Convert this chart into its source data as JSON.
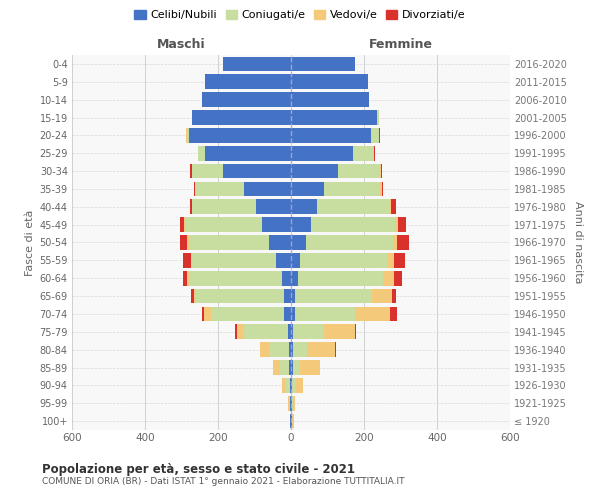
{
  "age_groups": [
    "100+",
    "95-99",
    "90-94",
    "85-89",
    "80-84",
    "75-79",
    "70-74",
    "65-69",
    "60-64",
    "55-59",
    "50-54",
    "45-49",
    "40-44",
    "35-39",
    "30-34",
    "25-29",
    "20-24",
    "15-19",
    "10-14",
    "5-9",
    "0-4"
  ],
  "birth_years": [
    "≤ 1920",
    "1921-1925",
    "1926-1930",
    "1931-1935",
    "1936-1940",
    "1941-1945",
    "1946-1950",
    "1951-1955",
    "1956-1960",
    "1961-1965",
    "1966-1970",
    "1971-1975",
    "1976-1980",
    "1981-1985",
    "1986-1990",
    "1991-1995",
    "1996-2000",
    "2001-2005",
    "2006-2010",
    "2011-2015",
    "2016-2020"
  ],
  "male_celibi": [
    2,
    3,
    4,
    5,
    5,
    8,
    18,
    20,
    25,
    40,
    60,
    80,
    95,
    130,
    185,
    235,
    280,
    270,
    245,
    235,
    185
  ],
  "male_coniugati": [
    0,
    3,
    12,
    25,
    55,
    120,
    200,
    240,
    255,
    230,
    220,
    210,
    175,
    130,
    85,
    20,
    5,
    0,
    0,
    0,
    0
  ],
  "male_vedovi": [
    0,
    2,
    8,
    20,
    25,
    20,
    20,
    5,
    5,
    5,
    5,
    3,
    2,
    2,
    2,
    0,
    3,
    0,
    0,
    0,
    0
  ],
  "male_divorziati": [
    0,
    0,
    0,
    0,
    0,
    5,
    5,
    8,
    12,
    22,
    18,
    12,
    5,
    4,
    4,
    0,
    0,
    0,
    0,
    0,
    0
  ],
  "female_nubili": [
    2,
    3,
    4,
    5,
    5,
    5,
    10,
    12,
    18,
    25,
    40,
    55,
    70,
    90,
    130,
    170,
    220,
    235,
    215,
    210,
    175
  ],
  "female_coniugate": [
    0,
    2,
    10,
    20,
    40,
    85,
    165,
    210,
    235,
    240,
    240,
    230,
    200,
    155,
    115,
    55,
    20,
    5,
    0,
    0,
    0
  ],
  "female_vedove": [
    5,
    5,
    20,
    55,
    75,
    85,
    95,
    55,
    30,
    18,
    10,
    8,
    5,
    3,
    2,
    2,
    2,
    0,
    0,
    0,
    0
  ],
  "female_divorziate": [
    0,
    0,
    0,
    0,
    3,
    3,
    20,
    12,
    20,
    28,
    32,
    22,
    12,
    5,
    3,
    2,
    2,
    0,
    0,
    0,
    0
  ],
  "colors": {
    "celibi_nubili": "#4472c4",
    "coniugati": "#c8dda0",
    "vedovi": "#f5c97a",
    "divorziati": "#d9312b"
  },
  "title": "Popolazione per età, sesso e stato civile - 2021",
  "subtitle": "COMUNE DI ORIA (BR) - Dati ISTAT 1° gennaio 2021 - Elaborazione TUTTITALIA.IT",
  "label_maschi": "Maschi",
  "label_femmine": "Femmine",
  "ylabel_left": "Fasce di età",
  "ylabel_right": "Anni di nascita",
  "xlim": 600,
  "xticks": [
    -600,
    -400,
    -200,
    0,
    200,
    400,
    600
  ],
  "legend_labels": [
    "Celibi/Nubili",
    "Coniugati/e",
    "Vedovi/e",
    "Divorziati/e"
  ],
  "bg_color": "#ffffff",
  "plot_bg": "#f8f8f8",
  "grid_color": "#cccccc"
}
